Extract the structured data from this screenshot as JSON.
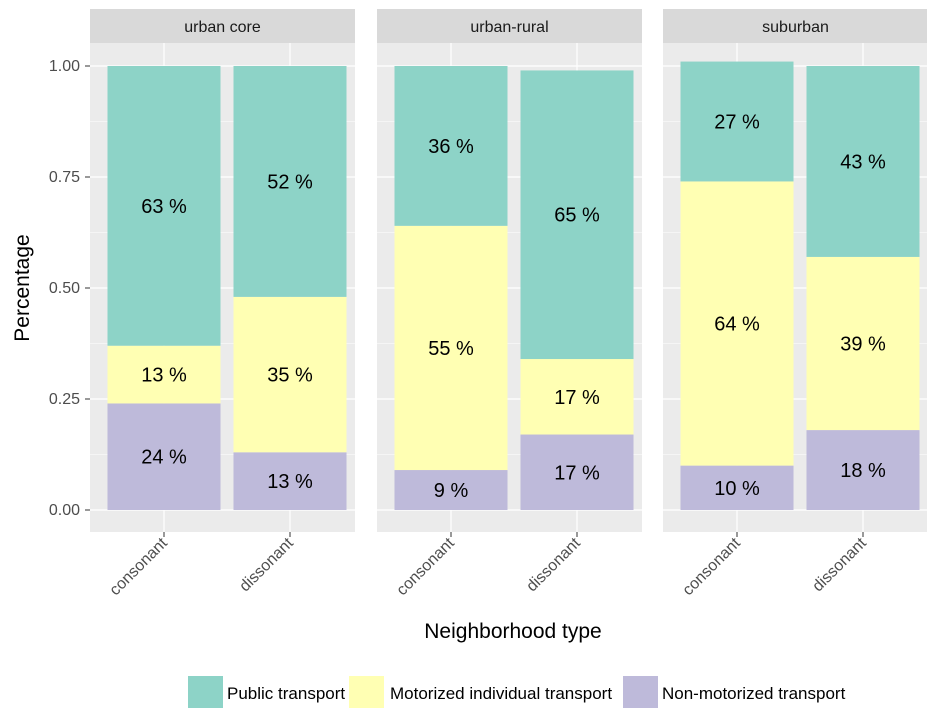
{
  "chart_data": {
    "type": "bar",
    "stacked": true,
    "ylabel": "Percentage",
    "xlabel": "Neighborhood type",
    "ylim": [
      0,
      1
    ],
    "yticks": [
      "0.00",
      "0.25",
      "0.50",
      "0.75",
      "1.00"
    ],
    "categories": [
      "consonant",
      "dissonant"
    ],
    "panels": [
      {
        "title": "urban core",
        "bars": [
          {
            "category": "consonant",
            "segments": [
              {
                "series": "Non-motorized transport",
                "value": 0.24,
                "label": "24 %"
              },
              {
                "series": "Motorized individual transport",
                "value": 0.13,
                "label": "13 %"
              },
              {
                "series": "Public transport",
                "value": 0.63,
                "label": "63 %"
              }
            ]
          },
          {
            "category": "dissonant",
            "segments": [
              {
                "series": "Non-motorized transport",
                "value": 0.13,
                "label": "13 %"
              },
              {
                "series": "Motorized individual transport",
                "value": 0.35,
                "label": "35 %"
              },
              {
                "series": "Public transport",
                "value": 0.52,
                "label": "52 %"
              }
            ]
          }
        ]
      },
      {
        "title": "urban-rural",
        "bars": [
          {
            "category": "consonant",
            "segments": [
              {
                "series": "Non-motorized transport",
                "value": 0.09,
                "label": "9 %"
              },
              {
                "series": "Motorized individual transport",
                "value": 0.55,
                "label": "55 %"
              },
              {
                "series": "Public transport",
                "value": 0.36,
                "label": "36 %"
              }
            ]
          },
          {
            "category": "dissonant",
            "segments": [
              {
                "series": "Non-motorized transport",
                "value": 0.17,
                "label": "17 %"
              },
              {
                "series": "Motorized individual transport",
                "value": 0.17,
                "label": "17 %"
              },
              {
                "series": "Public transport",
                "value": 0.65,
                "label": "65 %"
              }
            ]
          }
        ]
      },
      {
        "title": "suburban",
        "bars": [
          {
            "category": "consonant",
            "segments": [
              {
                "series": "Non-motorized transport",
                "value": 0.1,
                "label": "10 %"
              },
              {
                "series": "Motorized individual transport",
                "value": 0.64,
                "label": "64 %"
              },
              {
                "series": "Public transport",
                "value": 0.27,
                "label": "27 %"
              }
            ]
          },
          {
            "category": "dissonant",
            "segments": [
              {
                "series": "Non-motorized transport",
                "value": 0.18,
                "label": "18 %"
              },
              {
                "series": "Motorized individual transport",
                "value": 0.39,
                "label": "39 %"
              },
              {
                "series": "Public transport",
                "value": 0.43,
                "label": "43 %"
              }
            ]
          }
        ]
      }
    ],
    "legend": {
      "position": "bottom",
      "entries": [
        {
          "name": "Public transport",
          "color": "#8dd3c7"
        },
        {
          "name": "Motorized individual transport",
          "color": "#ffffb3"
        },
        {
          "name": "Non-motorized transport",
          "color": "#bebada"
        }
      ]
    },
    "grid": true,
    "colors": {
      "panel_background": "#ebebeb",
      "strip_background": "#d9d9d9",
      "gridline": "#ffffff"
    }
  }
}
